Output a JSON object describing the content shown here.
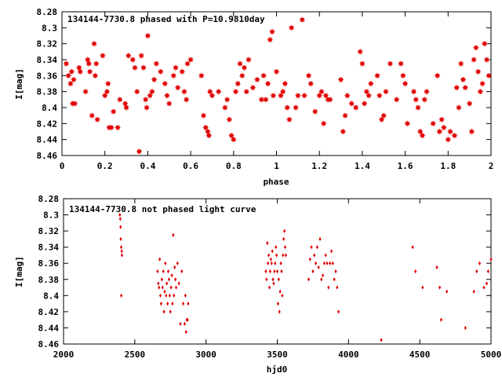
{
  "chart_data": [
    {
      "type": "scatter",
      "title": "134144-7730.8 phased with P=10.9810day",
      "xlabel": "phase",
      "ylabel": "I[mag]",
      "xlim": [
        0,
        2
      ],
      "ylim": [
        8.28,
        8.46
      ],
      "y_inverted": true,
      "grid": false,
      "color": "#e00000",
      "marker": "star",
      "x_ticks": [
        "0",
        "0.2",
        "0.4",
        "0.6",
        "0.8",
        "1",
        "1.2",
        "1.4",
        "1.6",
        "1.8",
        "2"
      ],
      "y_ticks": [
        "8.28",
        "8.3",
        "8.32",
        "8.34",
        "8.36",
        "8.38",
        "8.4",
        "8.42",
        "8.44",
        "8.46"
      ],
      "points": [
        [
          0.02,
          8.345
        ],
        [
          0.03,
          8.36
        ],
        [
          0.04,
          8.37
        ],
        [
          0.045,
          8.355
        ],
        [
          0.05,
          8.395
        ],
        [
          0.055,
          8.365
        ],
        [
          0.06,
          8.395
        ],
        [
          0.08,
          8.35
        ],
        [
          0.085,
          8.355
        ],
        [
          0.11,
          8.38
        ],
        [
          0.12,
          8.34
        ],
        [
          0.125,
          8.345
        ],
        [
          0.13,
          8.355
        ],
        [
          0.14,
          8.41
        ],
        [
          0.15,
          8.32
        ],
        [
          0.155,
          8.36
        ],
        [
          0.16,
          8.345
        ],
        [
          0.165,
          8.415
        ],
        [
          0.19,
          8.335
        ],
        [
          0.2,
          8.385
        ],
        [
          0.21,
          8.38
        ],
        [
          0.215,
          8.37
        ],
        [
          0.22,
          8.425
        ],
        [
          0.23,
          8.425
        ],
        [
          0.24,
          8.405
        ],
        [
          0.26,
          8.425
        ],
        [
          0.27,
          8.39
        ],
        [
          0.295,
          8.395
        ],
        [
          0.3,
          8.4
        ],
        [
          0.31,
          8.335
        ],
        [
          0.33,
          8.34
        ],
        [
          0.34,
          8.35
        ],
        [
          0.35,
          8.38
        ],
        [
          0.36,
          8.455
        ],
        [
          0.37,
          8.335
        ],
        [
          0.38,
          8.35
        ],
        [
          0.39,
          8.39
        ],
        [
          0.395,
          8.4
        ],
        [
          0.4,
          8.31
        ],
        [
          0.41,
          8.385
        ],
        [
          0.42,
          8.38
        ],
        [
          0.43,
          8.365
        ],
        [
          0.44,
          8.345
        ],
        [
          0.46,
          8.355
        ],
        [
          0.48,
          8.37
        ],
        [
          0.49,
          8.385
        ],
        [
          0.5,
          8.395
        ],
        [
          0.52,
          8.36
        ],
        [
          0.53,
          8.35
        ],
        [
          0.54,
          8.375
        ],
        [
          0.56,
          8.355
        ],
        [
          0.57,
          8.38
        ],
        [
          0.58,
          8.39
        ],
        [
          0.585,
          8.345
        ],
        [
          0.6,
          8.34
        ],
        [
          0.65,
          8.36
        ],
        [
          0.66,
          8.41
        ],
        [
          0.67,
          8.425
        ],
        [
          0.68,
          8.43
        ],
        [
          0.685,
          8.435
        ],
        [
          0.69,
          8.38
        ],
        [
          0.7,
          8.385
        ],
        [
          0.73,
          8.38
        ],
        [
          0.76,
          8.4
        ],
        [
          0.77,
          8.39
        ],
        [
          0.78,
          8.415
        ],
        [
          0.79,
          8.435
        ],
        [
          0.8,
          8.44
        ],
        [
          0.81,
          8.38
        ],
        [
          0.82,
          8.37
        ],
        [
          0.83,
          8.345
        ],
        [
          0.84,
          8.36
        ],
        [
          0.85,
          8.35
        ],
        [
          0.86,
          8.38
        ],
        [
          0.87,
          8.34
        ],
        [
          0.89,
          8.375
        ],
        [
          0.91,
          8.365
        ],
        [
          0.93,
          8.39
        ],
        [
          0.94,
          8.36
        ],
        [
          0.95,
          8.39
        ],
        [
          0.96,
          8.37
        ],
        [
          0.97,
          8.315
        ],
        [
          0.98,
          8.305
        ],
        [
          0.985,
          8.385
        ],
        [
          1.0,
          8.355
        ],
        [
          1.02,
          8.385
        ],
        [
          1.03,
          8.38
        ],
        [
          1.04,
          8.37
        ],
        [
          1.05,
          8.4
        ],
        [
          1.06,
          8.415
        ],
        [
          1.07,
          8.3
        ],
        [
          1.09,
          8.4
        ],
        [
          1.1,
          8.385
        ],
        [
          1.12,
          8.29
        ],
        [
          1.13,
          8.385
        ],
        [
          1.15,
          8.36
        ],
        [
          1.16,
          8.37
        ],
        [
          1.18,
          8.405
        ],
        [
          1.2,
          8.385
        ],
        [
          1.21,
          8.38
        ],
        [
          1.22,
          8.42
        ],
        [
          1.23,
          8.385
        ],
        [
          1.24,
          8.39
        ],
        [
          1.25,
          8.39
        ],
        [
          1.3,
          8.365
        ],
        [
          1.31,
          8.43
        ],
        [
          1.32,
          8.41
        ],
        [
          1.33,
          8.385
        ],
        [
          1.35,
          8.395
        ],
        [
          1.37,
          8.4
        ],
        [
          1.39,
          8.33
        ],
        [
          1.4,
          8.345
        ],
        [
          1.41,
          8.395
        ],
        [
          1.42,
          8.38
        ],
        [
          1.43,
          8.385
        ],
        [
          1.44,
          8.37
        ],
        [
          1.47,
          8.36
        ],
        [
          1.48,
          8.385
        ],
        [
          1.49,
          8.415
        ],
        [
          1.5,
          8.41
        ],
        [
          1.51,
          8.38
        ],
        [
          1.53,
          8.345
        ],
        [
          1.56,
          8.39
        ],
        [
          1.58,
          8.345
        ],
        [
          1.59,
          8.36
        ],
        [
          1.6,
          8.37
        ],
        [
          1.61,
          8.42
        ],
        [
          1.64,
          8.38
        ],
        [
          1.65,
          8.39
        ],
        [
          1.66,
          8.4
        ],
        [
          1.67,
          8.43
        ],
        [
          1.68,
          8.435
        ],
        [
          1.69,
          8.39
        ],
        [
          1.7,
          8.38
        ],
        [
          1.73,
          8.42
        ],
        [
          1.75,
          8.36
        ],
        [
          1.76,
          8.43
        ],
        [
          1.77,
          8.415
        ],
        [
          1.78,
          8.425
        ],
        [
          1.8,
          8.44
        ],
        [
          1.81,
          8.43
        ],
        [
          1.83,
          8.435
        ],
        [
          1.84,
          8.375
        ],
        [
          1.85,
          8.4
        ],
        [
          1.86,
          8.345
        ],
        [
          1.87,
          8.365
        ],
        [
          1.88,
          8.375
        ],
        [
          1.9,
          8.395
        ],
        [
          1.91,
          8.43
        ],
        [
          1.92,
          8.34
        ],
        [
          1.93,
          8.325
        ],
        [
          1.94,
          8.355
        ],
        [
          1.95,
          8.38
        ],
        [
          1.96,
          8.37
        ],
        [
          1.97,
          8.32
        ],
        [
          1.98,
          8.34
        ],
        [
          1.99,
          8.36
        ]
      ]
    },
    {
      "type": "scatter",
      "title": "134144-7730.8 not phased light curve",
      "xlabel": "hjd0",
      "ylabel": "I[mag]",
      "xlim": [
        2000,
        5000
      ],
      "ylim": [
        8.28,
        8.46
      ],
      "y_inverted": true,
      "grid": false,
      "color": "#e00000",
      "marker": "diamond",
      "x_ticks": [
        "2000",
        "2500",
        "3000",
        "3500",
        "4000",
        "4500",
        "5000"
      ],
      "y_ticks": [
        "8.28",
        "8.3",
        "8.32",
        "8.34",
        "8.36",
        "8.38",
        "8.4",
        "8.42",
        "8.44",
        "8.46"
      ],
      "points": [
        [
          2395,
          8.3
        ],
        [
          2398,
          8.305
        ],
        [
          2400,
          8.315
        ],
        [
          2402,
          8.33
        ],
        [
          2405,
          8.34
        ],
        [
          2408,
          8.345
        ],
        [
          2410,
          8.35
        ],
        [
          2405,
          8.4
        ],
        [
          2660,
          8.37
        ],
        [
          2665,
          8.385
        ],
        [
          2670,
          8.39
        ],
        [
          2675,
          8.355
        ],
        [
          2680,
          8.4
        ],
        [
          2685,
          8.41
        ],
        [
          2690,
          8.38
        ],
        [
          2695,
          8.39
        ],
        [
          2700,
          8.37
        ],
        [
          2705,
          8.42
        ],
        [
          2710,
          8.395
        ],
        [
          2715,
          8.36
        ],
        [
          2720,
          8.4
        ],
        [
          2725,
          8.385
        ],
        [
          2730,
          8.41
        ],
        [
          2735,
          8.37
        ],
        [
          2740,
          8.38
        ],
        [
          2745,
          8.4
        ],
        [
          2750,
          8.42
        ],
        [
          2755,
          8.39
        ],
        [
          2760,
          8.375
        ],
        [
          2765,
          8.41
        ],
        [
          2770,
          8.325
        ],
        [
          2775,
          8.4
        ],
        [
          2780,
          8.365
        ],
        [
          2785,
          8.38
        ],
        [
          2790,
          8.39
        ],
        [
          2800,
          8.36
        ],
        [
          2810,
          8.385
        ],
        [
          2820,
          8.435
        ],
        [
          2830,
          8.37
        ],
        [
          2840,
          8.41
        ],
        [
          2850,
          8.435
        ],
        [
          2855,
          8.4
        ],
        [
          2860,
          8.445
        ],
        [
          2865,
          8.43
        ],
        [
          2870,
          8.43
        ],
        [
          2875,
          8.41
        ],
        [
          3420,
          8.37
        ],
        [
          3425,
          8.38
        ],
        [
          3430,
          8.335
        ],
        [
          3435,
          8.36
        ],
        [
          3440,
          8.35
        ],
        [
          3445,
          8.39
        ],
        [
          3450,
          8.37
        ],
        [
          3455,
          8.355
        ],
        [
          3460,
          8.36
        ],
        [
          3465,
          8.345
        ],
        [
          3470,
          8.38
        ],
        [
          3475,
          8.385
        ],
        [
          3480,
          8.37
        ],
        [
          3485,
          8.36
        ],
        [
          3490,
          8.34
        ],
        [
          3495,
          8.35
        ],
        [
          3500,
          8.37
        ],
        [
          3505,
          8.41
        ],
        [
          3510,
          8.38
        ],
        [
          3515,
          8.42
        ],
        [
          3520,
          8.395
        ],
        [
          3525,
          8.36
        ],
        [
          3530,
          8.37
        ],
        [
          3535,
          8.4
        ],
        [
          3540,
          8.35
        ],
        [
          3545,
          8.33
        ],
        [
          3550,
          8.32
        ],
        [
          3555,
          8.34
        ],
        [
          3560,
          8.35
        ],
        [
          3720,
          8.38
        ],
        [
          3730,
          8.355
        ],
        [
          3740,
          8.34
        ],
        [
          3750,
          8.37
        ],
        [
          3760,
          8.35
        ],
        [
          3770,
          8.36
        ],
        [
          3780,
          8.34
        ],
        [
          3790,
          8.365
        ],
        [
          3800,
          8.33
        ],
        [
          3810,
          8.38
        ],
        [
          3820,
          8.375
        ],
        [
          3830,
          8.36
        ],
        [
          3840,
          8.35
        ],
        [
          3850,
          8.36
        ],
        [
          3860,
          8.39
        ],
        [
          3870,
          8.36
        ],
        [
          3880,
          8.345
        ],
        [
          3890,
          8.36
        ],
        [
          3900,
          8.38
        ],
        [
          3910,
          8.37
        ],
        [
          3920,
          8.39
        ],
        [
          3930,
          8.42
        ],
        [
          4230,
          8.455
        ],
        [
          4450,
          8.34
        ],
        [
          4470,
          8.37
        ],
        [
          4520,
          8.39
        ],
        [
          4620,
          8.365
        ],
        [
          4640,
          8.39
        ],
        [
          4650,
          8.43
        ],
        [
          4690,
          8.395
        ],
        [
          4820,
          8.44
        ],
        [
          4880,
          8.395
        ],
        [
          4900,
          8.37
        ],
        [
          4920,
          8.36
        ],
        [
          4950,
          8.39
        ],
        [
          4970,
          8.385
        ],
        [
          4980,
          8.37
        ],
        [
          5000,
          8.355
        ]
      ]
    }
  ]
}
